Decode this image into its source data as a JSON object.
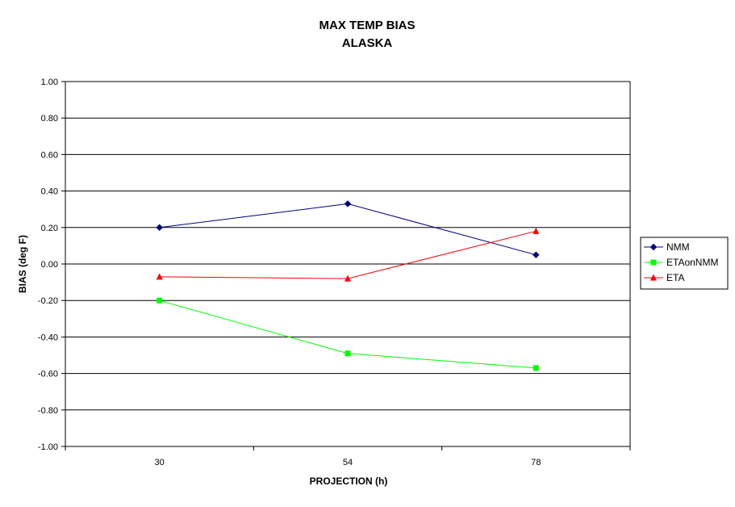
{
  "chart_data": {
    "type": "line",
    "title": "MAX TEMP BIAS",
    "subtitle": "ALASKA",
    "xlabel": "PROJECTION (h)",
    "ylabel": "BIAS (deg F)",
    "categories": [
      "30",
      "54",
      "78"
    ],
    "ylim": [
      -1.0,
      1.0
    ],
    "ytick_step": 0.2,
    "ytick_labels": [
      "1.00",
      "0.80",
      "0.60",
      "0.40",
      "0.20",
      "0.00",
      "-0.20",
      "-0.40",
      "-0.60",
      "-0.80",
      "-1.00"
    ],
    "grid": "horizontal",
    "legend_position": "right",
    "series": [
      {
        "name": "NMM",
        "values": [
          0.2,
          0.33,
          0.05
        ],
        "color": "#000080",
        "marker": "diamond"
      },
      {
        "name": "ETAonNMM",
        "values": [
          -0.2,
          -0.49,
          -0.57
        ],
        "color": "#00ff00",
        "marker": "square"
      },
      {
        "name": "ETA",
        "values": [
          -0.07,
          -0.08,
          0.18
        ],
        "color": "#ff0000",
        "marker": "triangle"
      }
    ]
  }
}
